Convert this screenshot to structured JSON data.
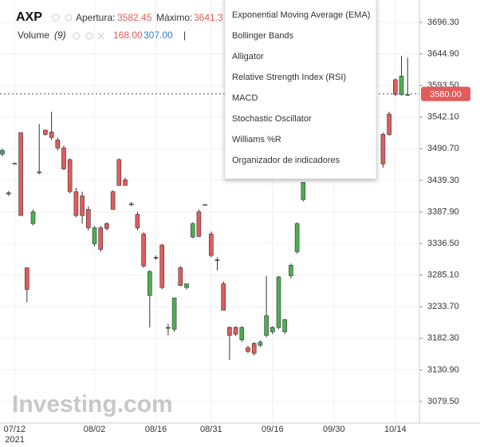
{
  "header": {
    "symbol": "AXP",
    "open_label": "Apertura:",
    "open_value": "3582.45",
    "high_label": "Máximo:",
    "high_value": "3641.3",
    "volume_label": "Volume",
    "volume_period": "(9)",
    "volume_value": "168.00",
    "volume_avg": "307.00",
    "separator": "|"
  },
  "menu": {
    "items": [
      "Exponential Moving Average (EMA)",
      "Bollinger Bands",
      "Alligator",
      "Relative Strength Index (RSI)",
      "MACD",
      "Stochastic Oscillator",
      "Williams %R",
      "Organizador de indicadores"
    ]
  },
  "watermark": "Investing.com",
  "chart_data": {
    "type": "candlestick",
    "up_color": "#4caf50",
    "down_color": "#e35b5b",
    "ylim": [
      3044.4,
      3732.7
    ],
    "yticks": [
      {
        "value": 3696.3,
        "label": "3696.30"
      },
      {
        "value": 3644.9,
        "label": "3644.90"
      },
      {
        "value": 3593.5,
        "label": "3593.50"
      },
      {
        "value": 3542.1,
        "label": "3542.10"
      },
      {
        "value": 3490.7,
        "label": "3490.70"
      },
      {
        "value": 3439.3,
        "label": "3439.30"
      },
      {
        "value": 3387.9,
        "label": "3387.90"
      },
      {
        "value": 3336.5,
        "label": "3336.50"
      },
      {
        "value": 3285.1,
        "label": "3285.10"
      },
      {
        "value": 3233.7,
        "label": "3233.70"
      },
      {
        "value": 3182.3,
        "label": "3182.30"
      },
      {
        "value": 3130.9,
        "label": "3130.90"
      },
      {
        "value": 3079.5,
        "label": "3079.50"
      }
    ],
    "last_price": {
      "value": 3580,
      "label": "3580.00"
    },
    "year": "2021",
    "categories": [
      null,
      null,
      "07/12",
      null,
      null,
      null,
      null,
      null,
      null,
      null,
      null,
      null,
      null,
      null,
      null,
      "08/02",
      null,
      null,
      null,
      null,
      null,
      null,
      null,
      null,
      null,
      "08/16",
      null,
      null,
      null,
      null,
      null,
      null,
      null,
      null,
      "08/31",
      null,
      null,
      null,
      null,
      null,
      null,
      null,
      null,
      null,
      "09/16",
      null,
      null,
      null,
      null,
      null,
      null,
      null,
      null,
      null,
      "09/30",
      null,
      null,
      null,
      null,
      null,
      null,
      null,
      null,
      null,
      "10/14",
      null,
      null
    ],
    "open": [
      3482,
      3417,
      3467,
      3517,
      3297,
      3369,
      3453,
      3521,
      3518,
      3505,
      3492,
      3473,
      3421,
      3414,
      3392,
      3336,
      3362,
      3369,
      3421,
      3473,
      3440,
      3401,
      3384,
      3352,
      3252,
      3314,
      3334,
      3200,
      3197,
      3297,
      3265,
      3347,
      3388,
      3400,
      3352,
      3310,
      3271,
      3200,
      3200,
      3180,
      3167,
      3174,
      3171,
      3187,
      3193,
      3200,
      3193,
      3284,
      3323,
      3408,
      null,
      null,
      null,
      null,
      null,
      null,
      null,
      null,
      null,
      null,
      null,
      null,
      3514,
      3547,
      3603,
      3579,
      3579
    ],
    "high": [
      3491,
      3422,
      3468,
      3517,
      3297,
      3392,
      3531,
      3521,
      3551,
      3509,
      3496,
      3475,
      3427,
      3421,
      3397,
      3365,
      3365,
      3371,
      3423,
      3475,
      3444,
      3404,
      3388,
      3355,
      3293,
      3317,
      3336,
      3206,
      3248,
      3300,
      3271,
      3371,
      3392,
      3400,
      3356,
      3314,
      3275,
      3202,
      3202,
      3202,
      3170,
      3176,
      3179,
      3284,
      3202,
      3284,
      3213,
      3304,
      3371,
      3436,
      null,
      null,
      null,
      null,
      null,
      null,
      null,
      null,
      null,
      null,
      null,
      null,
      3517,
      3551,
      3605,
      3642,
      3639
    ],
    "low": [
      3478,
      3414,
      3466,
      3382,
      3241,
      3366,
      3449,
      3512,
      3505,
      3488,
      3456,
      3418,
      3379,
      3369,
      3358,
      3332,
      3323,
      3358,
      3392,
      3431,
      3431,
      3397,
      3358,
      3297,
      3200,
      3310,
      3262,
      3187,
      3193,
      3268,
      3262,
      3345,
      3347,
      3400,
      3314,
      3293,
      3228,
      3147,
      3186,
      3176,
      3158,
      3154,
      3168,
      3184,
      3189,
      3197,
      3189,
      3280,
      3320,
      3405,
      null,
      null,
      null,
      null,
      null,
      null,
      null,
      null,
      null,
      null,
      null,
      null,
      3460,
      3512,
      3577,
      3577,
      3577
    ],
    "close": [
      3488,
      3419,
      3467,
      3382,
      3262,
      3388,
      3453,
      3514,
      3509,
      3492,
      3458,
      3421,
      3382,
      3382,
      3362,
      3362,
      3327,
      3361,
      3392,
      3431,
      3431,
      3400,
      3362,
      3300,
      3291,
      3314,
      3265,
      3200,
      3248,
      3268,
      3271,
      3369,
      3348,
      3400,
      3317,
      3310,
      3228,
      3187,
      3189,
      3200,
      3161,
      3158,
      3176,
      3219,
      3200,
      3282,
      3213,
      3301,
      3369,
      3436,
      null,
      null,
      null,
      null,
      null,
      null,
      null,
      null,
      null,
      null,
      null,
      null,
      3466,
      3514,
      3579,
      3609,
      3579
    ]
  }
}
